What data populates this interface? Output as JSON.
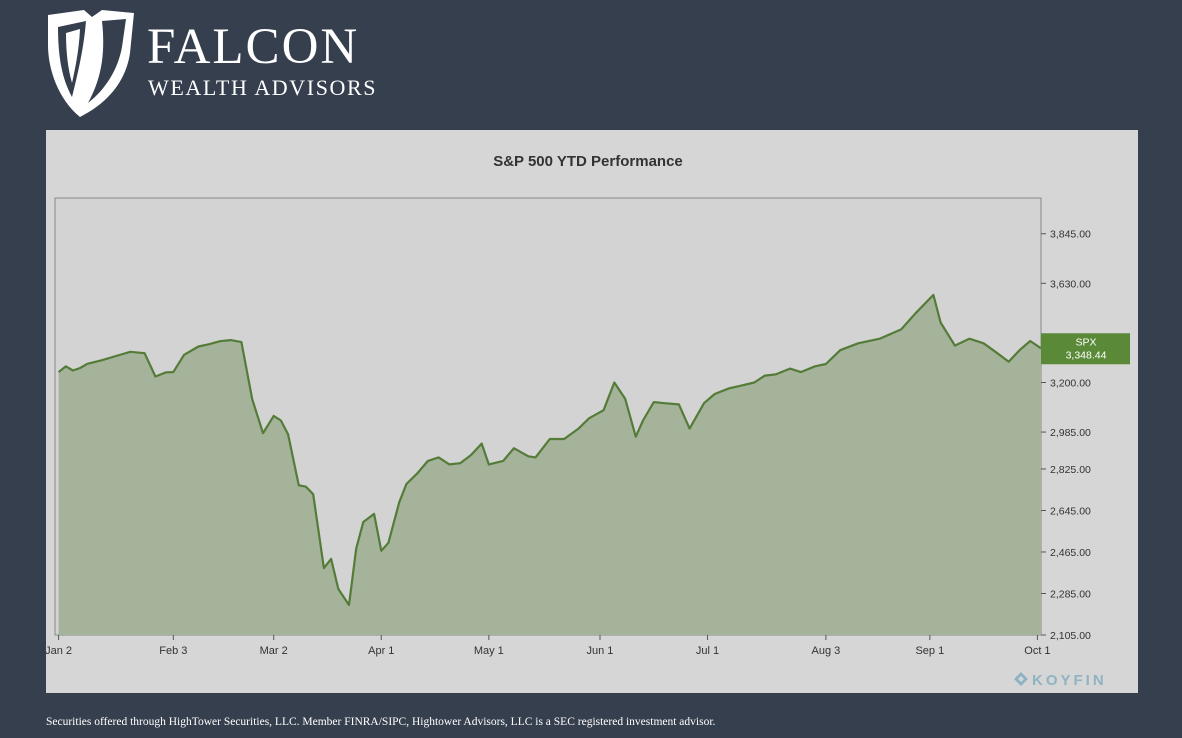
{
  "brand": {
    "name": "FALCON",
    "subtitle": "WEALTH ADVISORS",
    "logo_icon": "falcon-shield-icon"
  },
  "footer": {
    "disclaimer": "Securities offered through HighTower Securities, LLC. Member FINRA/SIPC, Hightower Advisors, LLC is a SEC registered investment advisor."
  },
  "watermark": {
    "text": "KOYFIN",
    "icon": "koyfin-diamond-icon",
    "color": "#8fb3c2"
  },
  "colors": {
    "background": "#363f4e",
    "panel": "#d6d6d6",
    "plot_area": "#d3d3d3",
    "line": "#547c38",
    "fill": "#a5b39b",
    "badge": "#5a8a38"
  },
  "chart_data": {
    "type": "area",
    "title": "S&P 500 YTD Performance",
    "series": [
      {
        "name": "SPX",
        "last_value_label": "3,348.44",
        "x": [
          "2020-01-02",
          "2020-01-04",
          "2020-01-06",
          "2020-01-08",
          "2020-01-10",
          "2020-01-14",
          "2020-01-18",
          "2020-01-22",
          "2020-01-26",
          "2020-01-29",
          "2020-02-01",
          "2020-02-03",
          "2020-02-06",
          "2020-02-10",
          "2020-02-13",
          "2020-02-16",
          "2020-02-19",
          "2020-02-22",
          "2020-02-25",
          "2020-02-28",
          "2020-03-02",
          "2020-03-04",
          "2020-03-06",
          "2020-03-09",
          "2020-03-11",
          "2020-03-13",
          "2020-03-16",
          "2020-03-18",
          "2020-03-20",
          "2020-03-23",
          "2020-03-25",
          "2020-03-27",
          "2020-03-30",
          "2020-04-01",
          "2020-04-03",
          "2020-04-06",
          "2020-04-08",
          "2020-04-11",
          "2020-04-14",
          "2020-04-17",
          "2020-04-20",
          "2020-04-23",
          "2020-04-26",
          "2020-04-29",
          "2020-05-01",
          "2020-05-05",
          "2020-05-08",
          "2020-05-12",
          "2020-05-14",
          "2020-05-18",
          "2020-05-22",
          "2020-05-26",
          "2020-05-29",
          "2020-06-02",
          "2020-06-05",
          "2020-06-08",
          "2020-06-11",
          "2020-06-13",
          "2020-06-16",
          "2020-06-19",
          "2020-06-23",
          "2020-06-26",
          "2020-06-30",
          "2020-07-03",
          "2020-07-07",
          "2020-07-10",
          "2020-07-14",
          "2020-07-17",
          "2020-07-20",
          "2020-07-24",
          "2020-07-27",
          "2020-07-31",
          "2020-08-03",
          "2020-08-07",
          "2020-08-12",
          "2020-08-18",
          "2020-08-24",
          "2020-08-28",
          "2020-09-02",
          "2020-09-04",
          "2020-09-08",
          "2020-09-12",
          "2020-09-16",
          "2020-09-20",
          "2020-09-23",
          "2020-09-26",
          "2020-09-29",
          "2020-10-02"
        ],
        "values": [
          3245,
          3270,
          3252,
          3263,
          3281,
          3296,
          3315,
          3333,
          3327,
          3226,
          3244,
          3245,
          3320,
          3356,
          3366,
          3379,
          3384,
          3375,
          3128,
          2980,
          3055,
          3035,
          2975,
          2754,
          2748,
          2715,
          2395,
          2435,
          2305,
          2235,
          2480,
          2595,
          2630,
          2470,
          2505,
          2680,
          2760,
          2805,
          2860,
          2875,
          2845,
          2850,
          2885,
          2935,
          2845,
          2860,
          2915,
          2880,
          2875,
          2955,
          2955,
          3000,
          3045,
          3080,
          3200,
          3130,
          2965,
          3035,
          3115,
          3110,
          3105,
          3000,
          3110,
          3150,
          3175,
          3185,
          3200,
          3230,
          3235,
          3260,
          3245,
          3270,
          3280,
          3340,
          3370,
          3390,
          3430,
          3500,
          3580,
          3460,
          3360,
          3390,
          3370,
          3325,
          3290,
          3340,
          3380,
          3348.44
        ]
      }
    ],
    "xlim": [
      "2020-01-01",
      "2020-10-02"
    ],
    "ylim": [
      2105,
      4000
    ],
    "y_ticks": [
      2105,
      2285,
      2465,
      2645,
      2825,
      2985,
      3200,
      3630,
      3845
    ],
    "y_tick_labels": [
      "2,105.00",
      "2,285.00",
      "2,465.00",
      "2,645.00",
      "2,825.00",
      "2,985.00",
      "3,200.00",
      "3,630.00",
      "3,845.00"
    ],
    "x_ticks": [
      "2020-01-02",
      "2020-02-03",
      "2020-03-02",
      "2020-04-01",
      "2020-05-01",
      "2020-06-01",
      "2020-07-01",
      "2020-08-03",
      "2020-09-01",
      "2020-10-01"
    ],
    "x_tick_labels": [
      "Jan 2",
      "Feb 3",
      "Mar 2",
      "Apr 1",
      "May 1",
      "Jun 1",
      "Jul 1",
      "Aug 3",
      "Sep 1",
      "Oct 1"
    ],
    "y_axis_side": "right",
    "grid": false,
    "legend": "none"
  }
}
